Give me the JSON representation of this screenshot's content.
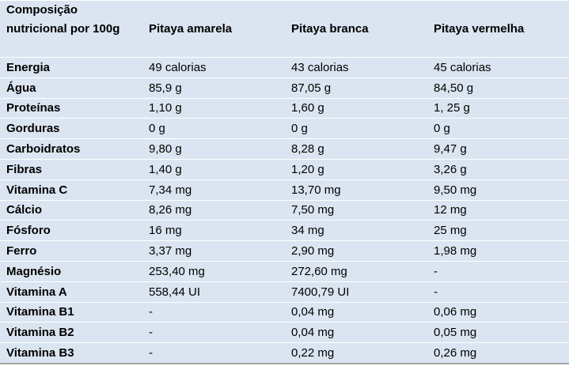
{
  "table": {
    "header": [
      "Composição nutricional por 100g",
      "Pitaya amarela",
      "Pitaya branca",
      "Pitaya vermelha"
    ],
    "rows": [
      [
        "Energia",
        "49 calorias",
        "43 calorias",
        "45 calorias"
      ],
      [
        "Água",
        "85,9 g",
        "87,05 g",
        "84,50 g"
      ],
      [
        "Proteínas",
        "1,10 g",
        "1,60 g",
        "1, 25 g"
      ],
      [
        "Gorduras",
        "0 g",
        "0 g",
        "0 g"
      ],
      [
        "Carboidratos",
        "9,80 g",
        "8,28 g",
        "9,47 g"
      ],
      [
        "Fibras",
        "1,40 g",
        "1,20 g",
        "3,26 g"
      ],
      [
        "Vitamina C",
        "7,34 mg",
        "13,70 mg",
        "9,50 mg"
      ],
      [
        "Cálcio",
        "8,26 mg",
        "7,50 mg",
        "12 mg"
      ],
      [
        "Fósforo",
        "16 mg",
        "34 mg",
        "25 mg"
      ],
      [
        "Ferro",
        "3,37 mg",
        "2,90 mg",
        "1,98 mg"
      ],
      [
        "Magnésio",
        "253,40 mg",
        "272,60 mg",
        "-"
      ],
      [
        "Vitamina A",
        "558,44 UI",
        "7400,79 UI",
        "-"
      ],
      [
        "Vitamina B1",
        "-",
        "0,04 mg",
        "0,06 mg"
      ],
      [
        "Vitamina B2",
        "-",
        "0,04 mg",
        "0,05 mg"
      ],
      [
        "Vitamina B3",
        "-",
        "0,22 mg",
        "0,26 mg"
      ]
    ]
  }
}
